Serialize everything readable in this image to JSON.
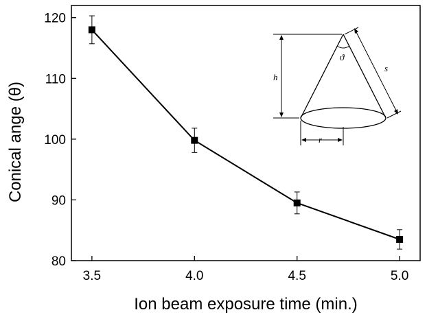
{
  "chart_data": {
    "type": "line",
    "xlabel": "Ion beam exposure time (min.)",
    "ylabel": "Conical ange (θ)",
    "xlim": [
      3.4,
      5.1
    ],
    "ylim": [
      80,
      122
    ],
    "x_ticks": [
      3.5,
      4.0,
      4.5,
      5.0
    ],
    "x_tick_labels": [
      "3.5",
      "4.0",
      "4.5",
      "5.0"
    ],
    "y_ticks": [
      80,
      90,
      100,
      110,
      120
    ],
    "y_tick_labels": [
      "80",
      "90",
      "100",
      "110",
      "120"
    ],
    "series": [
      {
        "x": [
          3.5,
          4.0,
          4.5,
          5.0
        ],
        "y": [
          118,
          99.8,
          89.5,
          83.5
        ],
        "error": [
          2.3,
          2.0,
          1.8,
          1.6
        ],
        "marker": "square",
        "color": "#000000"
      }
    ],
    "grid": false,
    "legend": "none",
    "inset": {
      "description": "cone-diagram",
      "labels": {
        "height": "h",
        "slant": "s",
        "radius": "r",
        "angle": "ϑ"
      }
    }
  }
}
